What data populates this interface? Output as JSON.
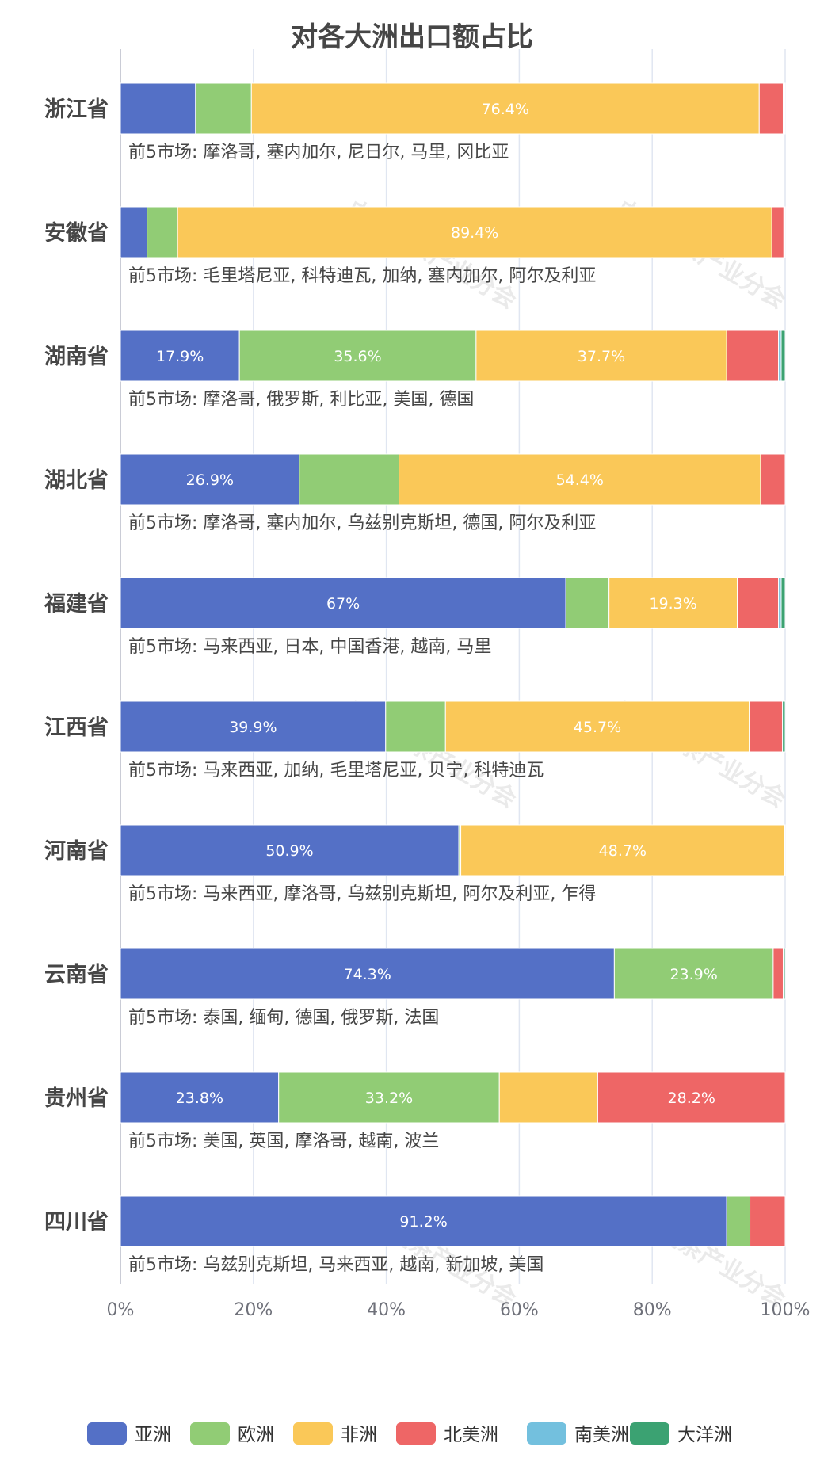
{
  "chart_data": {
    "type": "bar",
    "orientation": "horizontal",
    "stacked": true,
    "title": "对各大洲出口额占比",
    "categories": [
      "浙江省",
      "安徽省",
      "湖南省",
      "湖北省",
      "福建省",
      "江西省",
      "河南省",
      "云南省",
      "贵州省",
      "四川省"
    ],
    "markets": [
      "前5市场: 摩洛哥, 塞内加尔, 尼日尔, 马里, 冈比亚",
      "前5市场: 毛里塔尼亚, 科特迪瓦, 加纳, 塞内加尔, 阿尔及利亚",
      "前5市场: 摩洛哥, 俄罗斯, 利比亚, 美国, 德国",
      "前5市场: 摩洛哥, 塞内加尔, 乌兹别克斯坦, 德国, 阿尔及利亚",
      "前5市场: 马来西亚, 日本, 中国香港, 越南, 马里",
      "前5市场: 马来西亚, 加纳, 毛里塔尼亚, 贝宁, 科特迪瓦",
      "前5市场: 马来西亚, 摩洛哥, 乌兹别克斯坦, 阿尔及利亚, 乍得",
      "前5市场: 泰国, 缅甸, 德国, 俄罗斯, 法国",
      "前5市场: 美国, 英国, 摩洛哥, 越南, 波兰",
      "前5市场: 乌兹别克斯坦, 马来西亚, 越南, 新加坡, 美国"
    ],
    "series": [
      {
        "name": "亚洲",
        "color": "#5470c6",
        "values": [
          11.3,
          4.0,
          17.9,
          26.9,
          67,
          39.9,
          50.9,
          74.3,
          23.8,
          91.2
        ],
        "labels": [
          "",
          "",
          "17.9%",
          "26.9%",
          "67%",
          "39.9%",
          "50.9%",
          "74.3%",
          "23.8%",
          "91.2%"
        ]
      },
      {
        "name": "欧洲",
        "color": "#91cc75",
        "values": [
          8.4,
          4.6,
          35.6,
          15.0,
          6.5,
          9.0,
          0.3,
          23.9,
          33.2,
          3.5
        ],
        "labels": [
          "",
          "",
          "35.6%",
          "",
          "",
          "",
          "",
          "23.9%",
          "33.2%",
          ""
        ]
      },
      {
        "name": "非洲",
        "color": "#fac858",
        "values": [
          76.4,
          89.4,
          37.7,
          54.4,
          19.3,
          45.7,
          48.7,
          0,
          14.8,
          0
        ],
        "labels": [
          "76.4%",
          "89.4%",
          "37.7%",
          "54.4%",
          "19.3%",
          "45.7%",
          "48.7%",
          "",
          "",
          ""
        ]
      },
      {
        "name": "北美洲",
        "color": "#ee6666",
        "values": [
          3.6,
          1.8,
          7.8,
          3.7,
          6.2,
          5.0,
          0.1,
          1.5,
          28.2,
          5.3
        ],
        "labels": [
          "",
          "",
          "",
          "",
          "",
          "",
          "",
          "",
          "28.2%",
          ""
        ]
      },
      {
        "name": "南美洲",
        "color": "#73c0de",
        "values": [
          0.2,
          0.1,
          0.4,
          0,
          0.4,
          0,
          0,
          0.1,
          0,
          0
        ],
        "labels": [
          "",
          "",
          "",
          "",
          "",
          "",
          "",
          "",
          "",
          ""
        ]
      },
      {
        "name": "大洋洲",
        "color": "#3ba272",
        "values": [
          0.1,
          0.1,
          0.6,
          0,
          0.6,
          0.4,
          0,
          0.2,
          0,
          0
        ],
        "labels": [
          "",
          "",
          "",
          "",
          "",
          "",
          "",
          "",
          "",
          ""
        ]
      }
    ],
    "xlim": [
      0,
      100
    ],
    "xticks": [
      "0%",
      "20%",
      "40%",
      "60%",
      "80%",
      "100%"
    ],
    "grid": true,
    "legend_position": "bottom",
    "watermark": "中农促茶产业分会"
  }
}
